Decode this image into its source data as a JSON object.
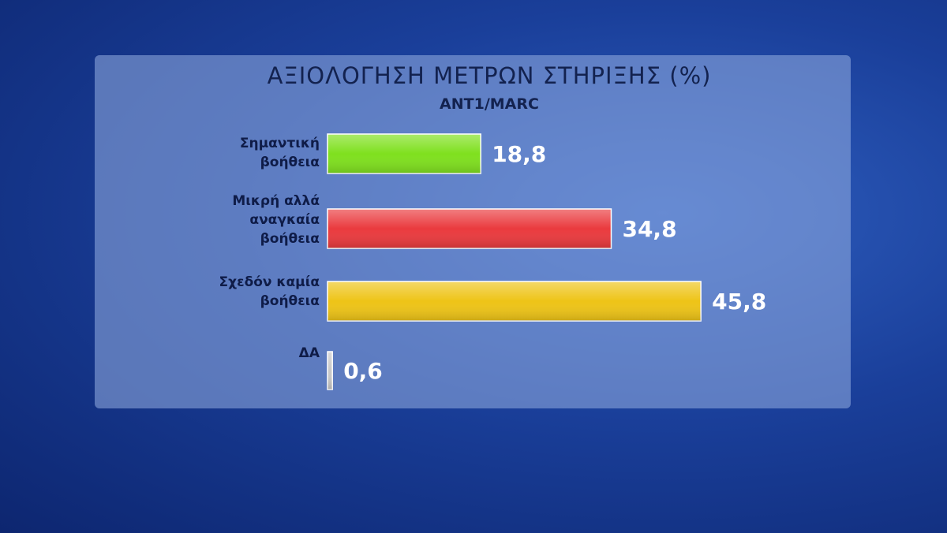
{
  "chart_data": {
    "type": "bar",
    "orientation": "horizontal",
    "title": "ΑΞΙΟΛΟΓΗΣΗ ΜΕΤΡΩΝ ΣΤΗΡΙΞΗΣ (%)",
    "subtitle": "ANT1/MARC",
    "categories": [
      "Σημαντική βοήθεια",
      "Μικρή αλλά αναγκαία βοήθεια",
      "Σχεδόν καμία βοήθεια",
      "ΔΑ"
    ],
    "values": [
      18.8,
      34.8,
      45.8,
      0.6
    ],
    "value_labels": [
      "18,8",
      "34,8",
      "45,8",
      "0,6"
    ],
    "colors": [
      "#7fe01e",
      "#ea3a3e",
      "#eec417",
      "#c8c8c8"
    ]
  }
}
